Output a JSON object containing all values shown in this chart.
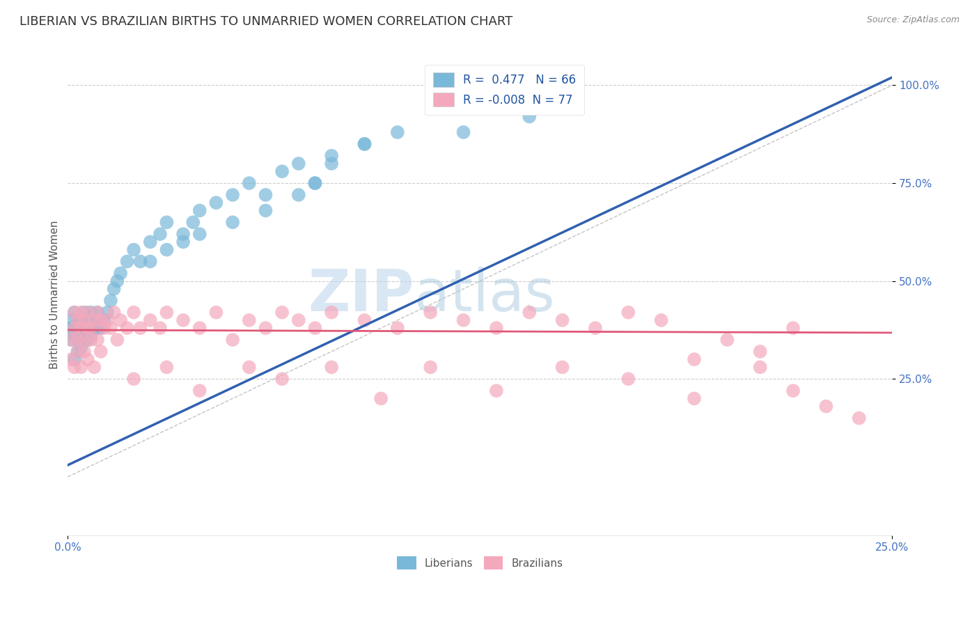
{
  "title": "LIBERIAN VS BRAZILIAN BIRTHS TO UNMARRIED WOMEN CORRELATION CHART",
  "source_text": "Source: ZipAtlas.com",
  "ylabel": "Births to Unmarried Women",
  "xlim": [
    0.0,
    0.25
  ],
  "ylim": [
    -0.15,
    1.08
  ],
  "xticks": [
    0.0,
    0.25
  ],
  "xtick_labels": [
    "0.0%",
    "25.0%"
  ],
  "ytick_positions": [
    0.25,
    0.5,
    0.75,
    1.0
  ],
  "ytick_labels": [
    "25.0%",
    "50.0%",
    "75.0%",
    "100.0%"
  ],
  "liberian_color": "#7ab8d9",
  "liberian_edge": "#5a9ec4",
  "brazilian_color": "#f4a8bc",
  "brazilian_edge": "#e87898",
  "lib_line_color": "#3060b0",
  "bra_line_color": "#e05878",
  "dash_line_color": "#aaaaaa",
  "liberian_R": 0.477,
  "liberian_N": 66,
  "brazilian_R": -0.008,
  "brazilian_N": 77,
  "legend_label_1": "Liberians",
  "legend_label_2": "Brazilians",
  "watermark_zip": "ZIP",
  "watermark_atlas": "atlas",
  "background_color": "#ffffff",
  "grid_color": "#cccccc",
  "title_fontsize": 13,
  "axis_label_fontsize": 11,
  "legend_fontsize": 12,
  "lib_line_y0": 0.03,
  "lib_line_y1": 1.02,
  "bra_line_y0": 0.375,
  "bra_line_y1": 0.368,
  "liberian_x": [
    0.001,
    0.001,
    0.001,
    0.002,
    0.002,
    0.002,
    0.002,
    0.003,
    0.003,
    0.003,
    0.003,
    0.004,
    0.004,
    0.004,
    0.005,
    0.005,
    0.005,
    0.006,
    0.006,
    0.006,
    0.007,
    0.007,
    0.007,
    0.008,
    0.008,
    0.009,
    0.009,
    0.01,
    0.01,
    0.011,
    0.012,
    0.013,
    0.014,
    0.015,
    0.016,
    0.018,
    0.02,
    0.022,
    0.025,
    0.028,
    0.03,
    0.035,
    0.038,
    0.04,
    0.045,
    0.05,
    0.055,
    0.06,
    0.065,
    0.07,
    0.075,
    0.08,
    0.09,
    0.025,
    0.03,
    0.035,
    0.04,
    0.05,
    0.06,
    0.07,
    0.075,
    0.08,
    0.09,
    0.1,
    0.12,
    0.14
  ],
  "liberian_y": [
    0.38,
    0.35,
    0.4,
    0.3,
    0.42,
    0.36,
    0.38,
    0.35,
    0.4,
    0.32,
    0.36,
    0.38,
    0.33,
    0.4,
    0.35,
    0.38,
    0.42,
    0.38,
    0.35,
    0.4,
    0.38,
    0.42,
    0.36,
    0.4,
    0.38,
    0.42,
    0.38,
    0.4,
    0.38,
    0.4,
    0.42,
    0.45,
    0.48,
    0.5,
    0.52,
    0.55,
    0.58,
    0.55,
    0.6,
    0.62,
    0.65,
    0.62,
    0.65,
    0.68,
    0.7,
    0.72,
    0.75,
    0.72,
    0.78,
    0.8,
    0.75,
    0.82,
    0.85,
    0.55,
    0.58,
    0.6,
    0.62,
    0.65,
    0.68,
    0.72,
    0.75,
    0.8,
    0.85,
    0.88,
    0.88,
    0.92
  ],
  "brazilian_x": [
    0.001,
    0.001,
    0.002,
    0.002,
    0.002,
    0.003,
    0.003,
    0.003,
    0.004,
    0.004,
    0.004,
    0.005,
    0.005,
    0.005,
    0.006,
    0.006,
    0.006,
    0.007,
    0.007,
    0.008,
    0.008,
    0.009,
    0.009,
    0.01,
    0.01,
    0.011,
    0.012,
    0.013,
    0.014,
    0.015,
    0.016,
    0.018,
    0.02,
    0.022,
    0.025,
    0.028,
    0.03,
    0.035,
    0.04,
    0.045,
    0.05,
    0.055,
    0.06,
    0.065,
    0.07,
    0.075,
    0.08,
    0.09,
    0.1,
    0.11,
    0.12,
    0.13,
    0.14,
    0.15,
    0.16,
    0.17,
    0.18,
    0.19,
    0.2,
    0.21,
    0.22,
    0.02,
    0.03,
    0.04,
    0.055,
    0.065,
    0.08,
    0.095,
    0.11,
    0.13,
    0.15,
    0.17,
    0.19,
    0.21,
    0.22,
    0.23,
    0.24
  ],
  "brazilian_y": [
    0.35,
    0.3,
    0.38,
    0.42,
    0.28,
    0.4,
    0.35,
    0.32,
    0.38,
    0.42,
    0.28,
    0.4,
    0.35,
    0.32,
    0.38,
    0.42,
    0.3,
    0.38,
    0.35,
    0.4,
    0.28,
    0.42,
    0.35,
    0.4,
    0.32,
    0.38,
    0.4,
    0.38,
    0.42,
    0.35,
    0.4,
    0.38,
    0.42,
    0.38,
    0.4,
    0.38,
    0.42,
    0.4,
    0.38,
    0.42,
    0.35,
    0.4,
    0.38,
    0.42,
    0.4,
    0.38,
    0.42,
    0.4,
    0.38,
    0.42,
    0.4,
    0.38,
    0.42,
    0.4,
    0.38,
    0.42,
    0.4,
    0.3,
    0.35,
    0.32,
    0.38,
    0.25,
    0.28,
    0.22,
    0.28,
    0.25,
    0.28,
    0.2,
    0.28,
    0.22,
    0.28,
    0.25,
    0.2,
    0.28,
    0.22,
    0.18,
    0.15
  ]
}
